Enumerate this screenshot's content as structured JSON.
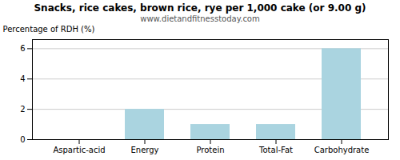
{
  "chart_data": {
    "type": "bar",
    "title": "Snacks, rice cakes, brown rice, rye per 1,000 cake (or 9.00 g)",
    "subtitle": "www.dietandfitnesstoday.com",
    "categories": [
      "Aspartic-acid",
      "Energy",
      "Protein",
      "Total-Fat",
      "Carbohydrate"
    ],
    "values": [
      0.0,
      2.0,
      1.0,
      1.0,
      6.0
    ],
    "color": "#aad4e0",
    "ylabel": "Percentage of RDH (%)",
    "ylim": [
      0,
      6.6
    ],
    "yticks": [
      0,
      2,
      4,
      6
    ],
    "grid": true
  }
}
